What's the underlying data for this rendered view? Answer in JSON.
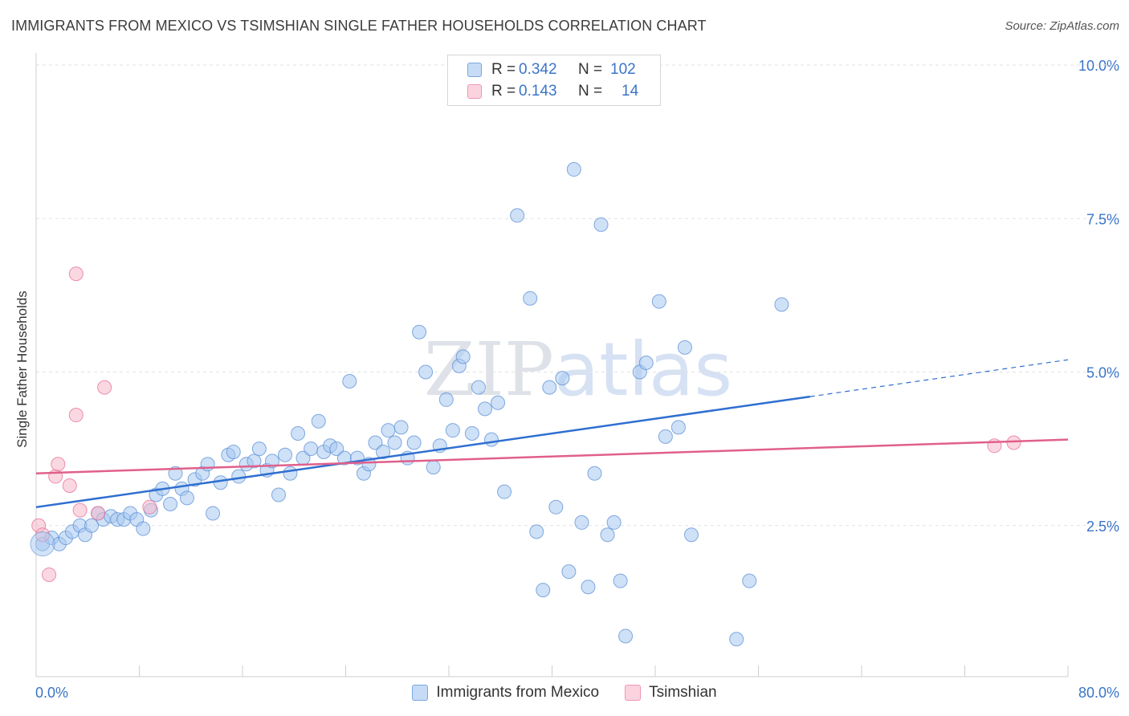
{
  "title": "IMMIGRANTS FROM MEXICO VS TSIMSHIAN SINGLE FATHER HOUSEHOLDS CORRELATION CHART",
  "source": "Source: ZipAtlas.com",
  "watermark": "ZIPatlas",
  "legend_top": [
    {
      "r_label": "R =",
      "r_value": "0.342",
      "n_label": "N =",
      "n_value": "102",
      "color": "#a8c8f0"
    },
    {
      "r_label": "R =",
      "r_value": "0.143",
      "n_label": "N =",
      "n_value": "14",
      "color": "#f5b8cb"
    }
  ],
  "chart_data": {
    "type": "scatter",
    "title": "IMMIGRANTS FROM MEXICO VS TSIMSHIAN SINGLE FATHER HOUSEHOLDS CORRELATION CHART",
    "xlabel": "",
    "ylabel": "Single Father Households",
    "xlim": [
      0,
      80
    ],
    "ylim": [
      0,
      10.5
    ],
    "x_tick_labels": [
      "0.0%",
      "80.0%"
    ],
    "y_ticks": [
      2.5,
      5.0,
      7.5,
      10.0
    ],
    "y_tick_labels": [
      "2.5%",
      "5.0%",
      "7.5%",
      "10.0%"
    ],
    "grid": true,
    "series": [
      {
        "name": "Immigrants from Mexico",
        "color": "#5b8fd6",
        "fill": "#a8c8f0",
        "trend": {
          "x": [
            0,
            60,
            80
          ],
          "y": [
            2.8,
            4.6,
            5.2
          ],
          "solid_until": 60
        },
        "points": [
          [
            0.5,
            2.2
          ],
          [
            1.2,
            2.3
          ],
          [
            1.8,
            2.2
          ],
          [
            2.3,
            2.3
          ],
          [
            2.8,
            2.4
          ],
          [
            3.4,
            2.5
          ],
          [
            3.8,
            2.35
          ],
          [
            4.3,
            2.5
          ],
          [
            4.8,
            2.7
          ],
          [
            5.2,
            2.6
          ],
          [
            5.8,
            2.65
          ],
          [
            6.3,
            2.6
          ],
          [
            6.8,
            2.6
          ],
          [
            7.3,
            2.7
          ],
          [
            7.8,
            2.6
          ],
          [
            8.3,
            2.45
          ],
          [
            8.9,
            2.75
          ],
          [
            9.3,
            3.0
          ],
          [
            9.8,
            3.1
          ],
          [
            10.4,
            2.85
          ],
          [
            10.8,
            3.35
          ],
          [
            11.3,
            3.1
          ],
          [
            11.7,
            2.95
          ],
          [
            12.3,
            3.25
          ],
          [
            12.9,
            3.35
          ],
          [
            13.3,
            3.5
          ],
          [
            13.7,
            2.7
          ],
          [
            14.3,
            3.2
          ],
          [
            14.9,
            3.65
          ],
          [
            15.3,
            3.7
          ],
          [
            15.7,
            3.3
          ],
          [
            16.3,
            3.5
          ],
          [
            16.9,
            3.55
          ],
          [
            17.3,
            3.75
          ],
          [
            17.9,
            3.4
          ],
          [
            18.3,
            3.55
          ],
          [
            18.8,
            3.0
          ],
          [
            19.3,
            3.65
          ],
          [
            19.7,
            3.35
          ],
          [
            20.3,
            4.0
          ],
          [
            20.7,
            3.6
          ],
          [
            21.3,
            3.75
          ],
          [
            21.9,
            4.2
          ],
          [
            22.3,
            3.7
          ],
          [
            22.8,
            3.8
          ],
          [
            23.3,
            3.75
          ],
          [
            23.9,
            3.6
          ],
          [
            24.3,
            4.85
          ],
          [
            24.9,
            3.6
          ],
          [
            25.4,
            3.35
          ],
          [
            25.8,
            3.5
          ],
          [
            26.3,
            3.85
          ],
          [
            26.9,
            3.7
          ],
          [
            27.3,
            4.05
          ],
          [
            27.8,
            3.85
          ],
          [
            28.3,
            4.1
          ],
          [
            28.8,
            3.6
          ],
          [
            29.3,
            3.85
          ],
          [
            29.7,
            5.65
          ],
          [
            30.2,
            5.0
          ],
          [
            30.8,
            3.45
          ],
          [
            31.3,
            3.8
          ],
          [
            31.8,
            4.55
          ],
          [
            32.3,
            4.05
          ],
          [
            32.8,
            5.1
          ],
          [
            33.1,
            5.25
          ],
          [
            33.8,
            4.0
          ],
          [
            34.3,
            4.75
          ],
          [
            34.8,
            4.4
          ],
          [
            35.3,
            3.9
          ],
          [
            35.8,
            4.5
          ],
          [
            36.3,
            3.05
          ],
          [
            37.3,
            7.55
          ],
          [
            38.3,
            6.2
          ],
          [
            38.8,
            2.4
          ],
          [
            39.3,
            1.45
          ],
          [
            39.8,
            4.75
          ],
          [
            40.3,
            2.8
          ],
          [
            40.8,
            4.9
          ],
          [
            41.3,
            1.75
          ],
          [
            41.7,
            8.3
          ],
          [
            42.3,
            2.55
          ],
          [
            42.8,
            1.5
          ],
          [
            43.3,
            3.35
          ],
          [
            43.8,
            7.4
          ],
          [
            44.3,
            2.35
          ],
          [
            44.8,
            2.55
          ],
          [
            45.3,
            1.6
          ],
          [
            45.7,
            0.7
          ],
          [
            46.8,
            5.0
          ],
          [
            47.3,
            5.15
          ],
          [
            48.3,
            6.15
          ],
          [
            48.8,
            3.95
          ],
          [
            49.8,
            4.1
          ],
          [
            50.3,
            5.4
          ],
          [
            50.8,
            2.35
          ],
          [
            54.3,
            0.65
          ],
          [
            55.3,
            1.6
          ],
          [
            57.8,
            6.1
          ]
        ]
      },
      {
        "name": "Tsimshian",
        "color": "#e86c95",
        "fill": "#f5b8cb",
        "trend": {
          "x": [
            0,
            80
          ],
          "y": [
            3.35,
            3.9
          ]
        },
        "points": [
          [
            0.2,
            2.5
          ],
          [
            0.5,
            2.35
          ],
          [
            1.0,
            1.7
          ],
          [
            1.5,
            3.3
          ],
          [
            1.7,
            3.5
          ],
          [
            2.6,
            3.15
          ],
          [
            3.1,
            4.3
          ],
          [
            3.4,
            2.75
          ],
          [
            3.1,
            6.6
          ],
          [
            4.8,
            2.7
          ],
          [
            5.3,
            4.75
          ],
          [
            8.8,
            2.8
          ],
          [
            74.3,
            3.8
          ],
          [
            75.8,
            3.85
          ]
        ]
      }
    ]
  },
  "legend_bottom": [
    {
      "label": "Immigrants from Mexico",
      "color": "#a8c8f0"
    },
    {
      "label": "Tsimshian",
      "color": "#f5b8cb"
    }
  ]
}
